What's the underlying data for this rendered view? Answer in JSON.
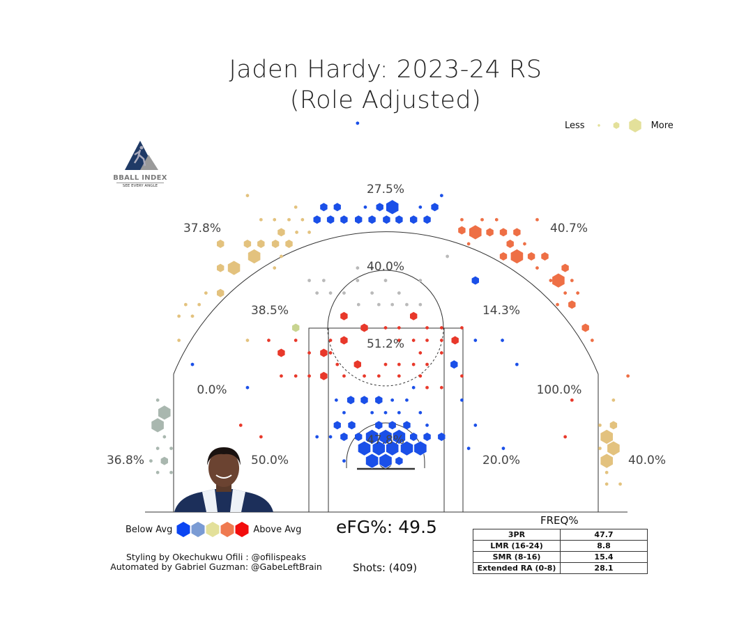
{
  "title_line1": "Jaden Hardy: 2023-24 RS",
  "title_line2": "(Role Adjusted)",
  "logo": {
    "name": "BBALL INDEX",
    "tagline": "SEE EVERY ANGLE"
  },
  "size_legend": {
    "less": "Less",
    "more": "More",
    "color": "#e3e09a"
  },
  "color_legend": {
    "below": "Below Avg",
    "above": "Above Avg",
    "colors": [
      "#0b45f2",
      "#7a9bd4",
      "#e3e09a",
      "#ef7a50",
      "#f20d0d"
    ]
  },
  "efg": "eFG%: 49.5",
  "shots": "Shots: (409)",
  "credits": [
    "Styling by Okechukwu Ofili : @ofilispeaks",
    "Automated by Gabriel Guzman: @GabeLeftBrain"
  ],
  "freq": {
    "title": "FREQ%",
    "rows": [
      {
        "label": "3PR",
        "value": "47.7"
      },
      {
        "label": "LMR (16-24)",
        "value": "8.8"
      },
      {
        "label": "SMR (8-16)",
        "value": "15.4"
      },
      {
        "label": "Extended RA (0-8)",
        "value": "28.1"
      }
    ]
  },
  "chart_data": {
    "type": "heatmap",
    "subtype": "hexbin shot chart",
    "title": "Jaden Hardy: 2023-24 RS (Role Adjusted)",
    "units": "court feet (x from center, y from baseline)",
    "size_scale": "1=less frequent, 3=more frequent",
    "colors": {
      "B": "#1a4fe8",
      "O": "#ee6f45",
      "R": "#e8382a",
      "T": "#e3c27e",
      "G": "#a9b7af",
      "L": "#b9b9b9",
      "Y": "#c8d490"
    },
    "zone_labels": [
      {
        "zone": "above-break-3-center",
        "value": "27.5%"
      },
      {
        "zone": "above-break-3-left",
        "value": "37.8%"
      },
      {
        "zone": "above-break-3-right",
        "value": "40.7%"
      },
      {
        "zone": "long-mid-center",
        "value": "40.0%"
      },
      {
        "zone": "long-mid-left",
        "value": "38.5%"
      },
      {
        "zone": "long-mid-right",
        "value": "14.3%"
      },
      {
        "zone": "short-mid-center",
        "value": "51.2%"
      },
      {
        "zone": "short-mid-left",
        "value": "0.0%"
      },
      {
        "zone": "short-mid-right",
        "value": "100.0%"
      },
      {
        "zone": "restricted-area",
        "value": "47.8%"
      },
      {
        "zone": "left-corner-3",
        "value": "36.8%"
      },
      {
        "zone": "baseline-mid-left",
        "value": "50.0%"
      },
      {
        "zone": "baseline-mid-right",
        "value": "20.0%"
      },
      {
        "zone": "right-corner-3",
        "value": "40.0%"
      }
    ],
    "hexes": [
      [
        -6.4,
        31.6,
        2,
        "B"
      ],
      [
        -5.0,
        31.6,
        2,
        "B"
      ],
      [
        -2.1,
        31.6,
        1,
        "B"
      ],
      [
        -0.6,
        31.6,
        2,
        "B"
      ],
      [
        0.7,
        31.6,
        3,
        "B"
      ],
      [
        3.6,
        31.6,
        1,
        "B"
      ],
      [
        5.1,
        31.6,
        2,
        "B"
      ],
      [
        -7.1,
        30.3,
        2,
        "B"
      ],
      [
        -5.7,
        30.3,
        2,
        "B"
      ],
      [
        -4.3,
        30.3,
        2,
        "B"
      ],
      [
        -2.8,
        30.3,
        2,
        "B"
      ],
      [
        -1.4,
        30.3,
        2,
        "B"
      ],
      [
        0.1,
        30.3,
        2,
        "B"
      ],
      [
        1.4,
        30.3,
        2,
        "B"
      ],
      [
        2.9,
        30.3,
        2,
        "B"
      ],
      [
        4.3,
        30.3,
        2,
        "B"
      ],
      [
        -2.9,
        40.3,
        1,
        "B"
      ],
      [
        5.8,
        32.8,
        1,
        "B"
      ],
      [
        9.3,
        29.0,
        3,
        "O"
      ],
      [
        7.9,
        29.2,
        2,
        "O"
      ],
      [
        10.8,
        29.0,
        2,
        "O"
      ],
      [
        12.2,
        29.0,
        2,
        "O"
      ],
      [
        13.6,
        29.0,
        2,
        "O"
      ],
      [
        7.9,
        30.3,
        1,
        "O"
      ],
      [
        10.0,
        30.3,
        1,
        "O"
      ],
      [
        11.5,
        30.3,
        1,
        "O"
      ],
      [
        15.7,
        30.3,
        1,
        "O"
      ],
      [
        12.9,
        27.8,
        2,
        "O"
      ],
      [
        14.4,
        27.8,
        1,
        "O"
      ],
      [
        8.6,
        27.8,
        1,
        "O"
      ],
      [
        13.6,
        26.5,
        3,
        "O"
      ],
      [
        12.2,
        26.5,
        2,
        "O"
      ],
      [
        15.1,
        26.5,
        2,
        "O"
      ],
      [
        16.5,
        26.5,
        2,
        "O"
      ],
      [
        15.7,
        25.3,
        1,
        "O"
      ],
      [
        18.6,
        25.3,
        2,
        "O"
      ],
      [
        17.9,
        24.0,
        3,
        "O"
      ],
      [
        17.1,
        24.0,
        1,
        "O"
      ],
      [
        19.3,
        24.0,
        1,
        "O"
      ],
      [
        19.9,
        22.7,
        1,
        "O"
      ],
      [
        18.6,
        22.7,
        1,
        "O"
      ],
      [
        17.8,
        21.5,
        1,
        "O"
      ],
      [
        19.3,
        21.5,
        2,
        "O"
      ],
      [
        20.7,
        19.1,
        2,
        "O"
      ],
      [
        21.4,
        17.8,
        1,
        "O"
      ],
      [
        25.1,
        14.1,
        1,
        "O"
      ],
      [
        23.6,
        11.6,
        1,
        "T"
      ],
      [
        23.6,
        9.0,
        2,
        "T"
      ],
      [
        22.2,
        9.0,
        1,
        "T"
      ],
      [
        22.9,
        7.8,
        3,
        "T"
      ],
      [
        23.6,
        6.6,
        3,
        "T"
      ],
      [
        22.2,
        6.6,
        1,
        "T"
      ],
      [
        22.9,
        5.3,
        3,
        "T"
      ],
      [
        22.9,
        4.1,
        1,
        "T"
      ],
      [
        22.9,
        2.9,
        1,
        "T"
      ],
      [
        24.3,
        2.9,
        1,
        "T"
      ],
      [
        -15.7,
        25.3,
        3,
        "T"
      ],
      [
        -13.6,
        26.5,
        3,
        "T"
      ],
      [
        -17.1,
        25.3,
        2,
        "T"
      ],
      [
        -17.1,
        27.8,
        2,
        "T"
      ],
      [
        -14.3,
        27.8,
        2,
        "T"
      ],
      [
        -12.9,
        27.8,
        2,
        "T"
      ],
      [
        -11.4,
        27.8,
        2,
        "T"
      ],
      [
        -10.0,
        27.8,
        2,
        "T"
      ],
      [
        -10.8,
        29.0,
        2,
        "T"
      ],
      [
        -9.2,
        29.0,
        1,
        "T"
      ],
      [
        -7.9,
        29.0,
        1,
        "T"
      ],
      [
        -12.9,
        30.3,
        1,
        "T"
      ],
      [
        -11.5,
        30.3,
        1,
        "T"
      ],
      [
        -10.0,
        30.3,
        1,
        "T"
      ],
      [
        -8.6,
        30.3,
        1,
        "T"
      ],
      [
        -9.3,
        31.6,
        1,
        "T"
      ],
      [
        -14.3,
        32.8,
        1,
        "T"
      ],
      [
        -10.8,
        26.5,
        1,
        "T"
      ],
      [
        -11.5,
        25.3,
        1,
        "T"
      ],
      [
        -17.1,
        22.7,
        2,
        "T"
      ],
      [
        -18.6,
        22.7,
        1,
        "T"
      ],
      [
        -19.3,
        21.5,
        1,
        "T"
      ],
      [
        -20.7,
        21.5,
        1,
        "T"
      ],
      [
        -20.0,
        20.3,
        1,
        "T"
      ],
      [
        -21.4,
        20.3,
        1,
        "T"
      ],
      [
        -21.4,
        17.8,
        1,
        "T"
      ],
      [
        -14.3,
        17.8,
        1,
        "T"
      ],
      [
        -22.9,
        10.3,
        3,
        "G"
      ],
      [
        -23.6,
        9.0,
        3,
        "G"
      ],
      [
        -23.6,
        11.6,
        1,
        "G"
      ],
      [
        -22.9,
        7.8,
        1,
        "G"
      ],
      [
        -23.6,
        6.6,
        1,
        "G"
      ],
      [
        -22.2,
        6.6,
        1,
        "G"
      ],
      [
        -24.3,
        5.3,
        1,
        "G"
      ],
      [
        -22.9,
        5.3,
        2,
        "G"
      ],
      [
        -23.6,
        4.1,
        1,
        "G"
      ],
      [
        -22.2,
        4.1,
        1,
        "G"
      ],
      [
        -9.3,
        19.1,
        2,
        "Y"
      ],
      [
        -20.0,
        15.3,
        1,
        "B"
      ],
      [
        -14.3,
        12.9,
        1,
        "B"
      ],
      [
        -10.8,
        16.5,
        2,
        "R"
      ],
      [
        -12.1,
        17.8,
        1,
        "R"
      ],
      [
        -9.3,
        17.8,
        1,
        "R"
      ],
      [
        -7.9,
        16.5,
        1,
        "R"
      ],
      [
        -6.4,
        16.5,
        2,
        "R"
      ],
      [
        -6.4,
        14.1,
        2,
        "R"
      ],
      [
        -7.9,
        14.1,
        1,
        "R"
      ],
      [
        -9.3,
        14.1,
        1,
        "R"
      ],
      [
        -10.8,
        14.1,
        1,
        "R"
      ],
      [
        -15.0,
        9.0,
        1,
        "R"
      ],
      [
        -12.9,
        7.8,
        1,
        "R"
      ],
      [
        -4.3,
        20.3,
        2,
        "R"
      ],
      [
        -2.2,
        19.1,
        2,
        "R"
      ],
      [
        0,
        19.1,
        1,
        "R"
      ],
      [
        1.4,
        19.1,
        1,
        "R"
      ],
      [
        2.9,
        20.3,
        2,
        "R"
      ],
      [
        4.3,
        19.1,
        1,
        "R"
      ],
      [
        5.8,
        19.1,
        1,
        "R"
      ],
      [
        7.9,
        19.1,
        1,
        "R"
      ],
      [
        7.2,
        17.8,
        2,
        "R"
      ],
      [
        5.8,
        17.8,
        1,
        "R"
      ],
      [
        4.3,
        17.8,
        1,
        "R"
      ],
      [
        2.9,
        17.8,
        1,
        "R"
      ],
      [
        1.4,
        17.8,
        1,
        "R"
      ],
      [
        -4.3,
        17.8,
        2,
        "R"
      ],
      [
        -5.7,
        17.8,
        1,
        "R"
      ],
      [
        -5.7,
        16.5,
        1,
        "R"
      ],
      [
        5.8,
        16.5,
        1,
        "R"
      ],
      [
        3.6,
        16.5,
        1,
        "R"
      ],
      [
        -5.0,
        15.3,
        1,
        "R"
      ],
      [
        -2.9,
        15.3,
        2,
        "R"
      ],
      [
        0,
        15.3,
        1,
        "R"
      ],
      [
        1.4,
        15.3,
        1,
        "R"
      ],
      [
        2.9,
        15.3,
        1,
        "R"
      ],
      [
        4.3,
        15.3,
        1,
        "R"
      ],
      [
        -4.3,
        14.1,
        1,
        "R"
      ],
      [
        -2.2,
        14.1,
        1,
        "R"
      ],
      [
        -0.7,
        14.1,
        1,
        "R"
      ],
      [
        1.4,
        14.1,
        1,
        "R"
      ],
      [
        3.6,
        14.1,
        1,
        "R"
      ],
      [
        7.9,
        14.1,
        1,
        "R"
      ],
      [
        4.3,
        12.9,
        1,
        "R"
      ],
      [
        5.8,
        12.9,
        1,
        "R"
      ],
      [
        -2.9,
        25.3,
        1,
        "L"
      ],
      [
        -1.4,
        25.3,
        1,
        "L"
      ],
      [
        -2.9,
        24.0,
        1,
        "L"
      ],
      [
        0,
        24.0,
        1,
        "L"
      ],
      [
        3.6,
        24.0,
        1,
        "L"
      ],
      [
        -6.4,
        24.0,
        1,
        "L"
      ],
      [
        -7.9,
        24.0,
        1,
        "L"
      ],
      [
        6.4,
        26.5,
        1,
        "L"
      ],
      [
        -7.1,
        22.7,
        1,
        "L"
      ],
      [
        -5.7,
        22.7,
        1,
        "L"
      ],
      [
        -4.3,
        22.7,
        1,
        "L"
      ],
      [
        -1.4,
        22.7,
        1,
        "L"
      ],
      [
        1.4,
        22.7,
        1,
        "L"
      ],
      [
        -2.8,
        21.5,
        1,
        "L"
      ],
      [
        -0.7,
        21.5,
        1,
        "L"
      ],
      [
        0.7,
        21.5,
        1,
        "L"
      ],
      [
        2.2,
        21.5,
        1,
        "L"
      ],
      [
        3.6,
        21.5,
        1,
        "L"
      ],
      [
        -3.6,
        11.6,
        2,
        "B"
      ],
      [
        -2.2,
        11.6,
        2,
        "B"
      ],
      [
        -0.7,
        11.6,
        2,
        "B"
      ],
      [
        -5.1,
        11.6,
        1,
        "B"
      ],
      [
        0.7,
        11.6,
        1,
        "B"
      ],
      [
        2.2,
        11.6,
        1,
        "B"
      ],
      [
        2.9,
        12.9,
        1,
        "B"
      ],
      [
        -4.3,
        10.3,
        1,
        "B"
      ],
      [
        -1.4,
        10.3,
        1,
        "B"
      ],
      [
        0,
        10.3,
        1,
        "B"
      ],
      [
        1.4,
        10.3,
        1,
        "B"
      ],
      [
        3.6,
        10.3,
        1,
        "B"
      ],
      [
        -5.0,
        9.0,
        2,
        "B"
      ],
      [
        -3.5,
        9.0,
        2,
        "B"
      ],
      [
        -0.7,
        9.0,
        2,
        "B"
      ],
      [
        0.7,
        9.0,
        2,
        "B"
      ],
      [
        2.2,
        9.0,
        2,
        "B"
      ],
      [
        4.3,
        9.0,
        1,
        "B"
      ],
      [
        -7.1,
        7.8,
        1,
        "B"
      ],
      [
        -5.7,
        7.8,
        1,
        "B"
      ],
      [
        -4.3,
        7.8,
        2,
        "B"
      ],
      [
        -2.8,
        7.8,
        2,
        "B"
      ],
      [
        -1.4,
        7.8,
        3,
        "B"
      ],
      [
        0,
        7.8,
        3,
        "B"
      ],
      [
        1.4,
        7.8,
        3,
        "B"
      ],
      [
        2.9,
        7.8,
        2,
        "B"
      ],
      [
        4.3,
        7.8,
        2,
        "B"
      ],
      [
        5.8,
        7.8,
        2,
        "B"
      ],
      [
        -2.2,
        6.6,
        3,
        "B"
      ],
      [
        -0.7,
        6.6,
        3,
        "B"
      ],
      [
        0.7,
        6.6,
        3,
        "B"
      ],
      [
        2.2,
        6.6,
        3,
        "B"
      ],
      [
        3.6,
        6.6,
        3,
        "B"
      ],
      [
        -1.4,
        5.3,
        3,
        "B"
      ],
      [
        0,
        5.3,
        3,
        "B"
      ],
      [
        1.4,
        5.3,
        2,
        "B"
      ],
      [
        -4.3,
        5.3,
        1,
        "B"
      ],
      [
        9.3,
        24.0,
        2,
        "B"
      ],
      [
        7.1,
        15.3,
        2,
        "B"
      ],
      [
        13.6,
        15.3,
        1,
        "B"
      ],
      [
        9.3,
        9.0,
        1,
        "B"
      ],
      [
        8.6,
        6.6,
        1,
        "B"
      ],
      [
        12.2,
        6.6,
        1,
        "B"
      ],
      [
        7.9,
        11.6,
        1,
        "B"
      ],
      [
        9.3,
        17.8,
        1,
        "B"
      ],
      [
        12.1,
        17.8,
        1,
        "B"
      ],
      [
        19.3,
        11.6,
        1,
        "R"
      ],
      [
        18.6,
        7.8,
        1,
        "R"
      ]
    ]
  }
}
